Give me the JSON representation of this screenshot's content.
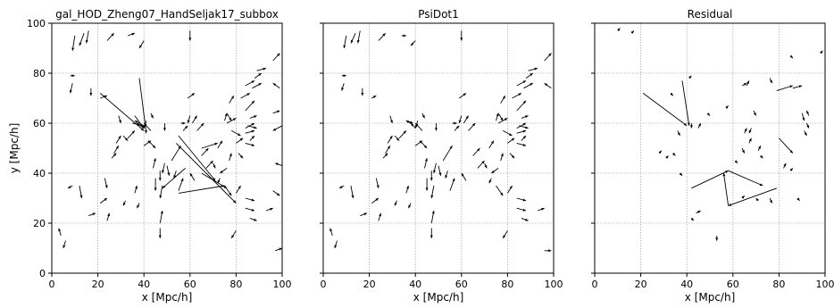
{
  "figure": {
    "ylabel": "y [Mpc/h]"
  },
  "chart_data": [
    {
      "type": "quiver",
      "title": "gal_HOD_Zheng07_HandSeljak17_subbox",
      "xlabel": "x [Mpc/h]",
      "ylabel": "y [Mpc/h]",
      "xlim": [
        0,
        100
      ],
      "ylim": [
        0,
        100
      ],
      "xticks": [
        0,
        20,
        40,
        60,
        80,
        100
      ],
      "yticks": [
        0,
        20,
        40,
        60,
        80,
        100
      ],
      "grid": true,
      "arrows": [
        [
          10,
          95,
          9,
          89
        ],
        [
          14,
          96,
          12,
          91
        ],
        [
          16,
          97,
          15,
          92
        ],
        [
          24,
          93,
          27,
          96
        ],
        [
          33,
          95,
          36,
          96
        ],
        [
          40,
          93,
          38,
          90
        ],
        [
          60,
          97,
          60,
          93
        ],
        [
          8,
          79,
          10,
          79
        ],
        [
          9,
          76,
          8,
          72
        ],
        [
          17,
          74,
          17,
          71
        ],
        [
          21,
          70,
          24,
          71
        ],
        [
          36,
          63,
          40,
          58
        ],
        [
          38,
          60,
          36,
          61
        ],
        [
          35,
          60,
          40,
          59
        ],
        [
          40,
          58,
          37,
          60
        ],
        [
          43,
          64,
          44,
          62
        ],
        [
          41,
          61,
          40,
          58
        ],
        [
          31,
          55,
          33,
          53
        ],
        [
          33,
          54,
          36,
          57
        ],
        [
          28,
          52,
          30,
          55
        ],
        [
          27,
          48,
          29,
          51
        ],
        [
          26,
          46,
          28,
          48
        ],
        [
          40,
          51,
          43,
          53
        ],
        [
          44,
          42,
          45,
          46
        ],
        [
          47,
          41,
          47,
          37
        ],
        [
          49,
          44,
          48,
          40
        ],
        [
          50,
          43,
          51,
          39
        ],
        [
          48,
          35,
          47,
          30
        ],
        [
          45,
          38,
          45,
          33
        ],
        [
          36,
          32,
          37,
          35
        ],
        [
          23,
          38,
          24,
          34
        ],
        [
          21,
          28,
          24,
          30
        ],
        [
          12,
          35,
          13,
          30
        ],
        [
          16,
          23,
          19,
          24
        ],
        [
          24,
          21,
          25,
          24
        ],
        [
          47,
          20,
          48,
          25
        ],
        [
          47,
          18,
          47,
          14
        ],
        [
          38,
          28,
          37,
          26
        ],
        [
          32,
          29,
          31,
          27
        ],
        [
          49,
          60,
          49,
          57
        ],
        [
          59,
          70,
          62,
          72
        ],
        [
          60,
          63,
          59,
          60
        ],
        [
          57,
          57,
          59,
          59
        ],
        [
          61,
          60,
          63,
          63
        ],
        [
          56,
          60,
          58,
          60
        ],
        [
          63,
          57,
          66,
          60
        ],
        [
          72,
          50,
          74,
          53
        ],
        [
          65,
          47,
          68,
          50
        ],
        [
          70,
          44,
          71,
          42
        ],
        [
          67,
          42,
          70,
          45
        ],
        [
          62,
          37,
          60,
          40
        ],
        [
          55,
          33,
          57,
          38
        ],
        [
          52,
          45,
          56,
          51
        ],
        [
          54,
          41,
          53,
          38
        ],
        [
          75,
          61,
          76,
          64
        ],
        [
          76,
          60,
          80,
          62
        ],
        [
          78,
          57,
          82,
          55
        ],
        [
          84,
          58,
          88,
          60
        ],
        [
          84,
          65,
          88,
          69
        ],
        [
          86,
          62,
          89,
          63
        ],
        [
          85,
          59,
          89,
          58
        ],
        [
          84,
          56,
          88,
          57
        ],
        [
          86,
          53,
          88,
          55
        ],
        [
          84,
          52,
          88,
          51
        ],
        [
          80,
          52,
          83,
          54
        ],
        [
          81,
          48,
          83,
          46
        ],
        [
          77,
          45,
          78,
          48
        ],
        [
          76,
          42,
          73,
          40
        ],
        [
          73,
          38,
          72,
          36
        ],
        [
          75,
          35,
          78,
          31
        ],
        [
          80,
          32,
          82,
          35
        ],
        [
          84,
          30,
          88,
          29
        ],
        [
          84,
          26,
          88,
          25
        ],
        [
          86,
          22,
          89,
          21
        ],
        [
          87,
          74,
          91,
          76
        ],
        [
          82,
          70,
          86,
          72
        ],
        [
          77,
          68,
          79,
          71
        ],
        [
          76,
          64,
          78,
          61
        ],
        [
          84,
          75,
          88,
          77
        ],
        [
          89,
          81,
          93,
          82
        ],
        [
          88,
          78,
          91,
          80
        ],
        [
          93,
          25,
          96,
          26
        ],
        [
          96,
          85,
          99,
          88
        ],
        [
          99,
          74,
          96,
          76
        ],
        [
          4,
          15,
          3,
          18
        ],
        [
          6,
          13,
          5,
          10
        ],
        [
          9,
          35,
          7,
          34
        ],
        [
          21,
          72,
          40,
          57
        ],
        [
          38,
          78,
          41,
          56
        ],
        [
          58,
          42,
          48,
          34
        ],
        [
          55,
          55,
          71,
          37
        ],
        [
          65,
          40,
          76,
          34
        ],
        [
          55,
          32,
          75,
          35
        ],
        [
          54,
          52,
          80,
          28
        ],
        [
          65,
          50,
          72,
          52
        ],
        [
          96,
          64,
          99,
          65
        ],
        [
          100,
          59,
          96,
          57
        ],
        [
          100,
          43,
          97,
          44
        ],
        [
          97,
          9,
          100,
          10
        ],
        [
          96,
          33,
          99,
          31
        ],
        [
          80,
          17,
          78,
          14
        ],
        [
          43,
          57,
          40,
          60
        ],
        [
          42,
          53,
          45,
          50
        ],
        [
          29,
          63,
          30,
          60
        ]
      ]
    },
    {
      "type": "quiver",
      "title": "PsiDot1",
      "xlabel": "x [Mpc/h]",
      "ylabel": "",
      "xlim": [
        0,
        100
      ],
      "ylim": [
        0,
        100
      ],
      "xticks": [
        0,
        20,
        40,
        60,
        80,
        100
      ],
      "yticks": [
        0,
        20,
        40,
        60,
        80,
        100
      ],
      "grid": true,
      "arrows": [
        [
          10,
          95,
          9,
          90
        ],
        [
          14,
          96,
          12,
          92
        ],
        [
          16,
          97,
          15,
          92
        ],
        [
          24,
          93,
          27,
          96
        ],
        [
          34,
          95,
          36,
          95
        ],
        [
          40,
          93,
          38,
          91
        ],
        [
          60,
          97,
          60,
          93
        ],
        [
          8,
          79,
          10,
          79
        ],
        [
          9,
          76,
          8,
          73
        ],
        [
          17,
          74,
          17,
          71
        ],
        [
          21,
          70,
          23,
          71
        ],
        [
          36,
          61,
          39,
          60
        ],
        [
          38,
          60,
          36,
          61
        ],
        [
          40,
          58,
          38,
          60
        ],
        [
          43,
          64,
          44,
          62
        ],
        [
          41,
          61,
          40,
          58
        ],
        [
          31,
          55,
          33,
          53
        ],
        [
          33,
          54,
          36,
          57
        ],
        [
          28,
          52,
          30,
          55
        ],
        [
          27,
          48,
          29,
          51
        ],
        [
          26,
          46,
          28,
          48
        ],
        [
          40,
          51,
          43,
          53
        ],
        [
          44,
          42,
          45,
          46
        ],
        [
          47,
          41,
          47,
          37
        ],
        [
          49,
          44,
          48,
          40
        ],
        [
          50,
          43,
          51,
          39
        ],
        [
          48,
          35,
          47,
          30
        ],
        [
          45,
          38,
          45,
          33
        ],
        [
          36,
          32,
          37,
          35
        ],
        [
          23,
          38,
          24,
          34
        ],
        [
          21,
          28,
          24,
          30
        ],
        [
          12,
          35,
          13,
          30
        ],
        [
          16,
          23,
          19,
          24
        ],
        [
          24,
          21,
          25,
          24
        ],
        [
          47,
          20,
          48,
          25
        ],
        [
          47,
          18,
          47,
          14
        ],
        [
          38,
          28,
          37,
          26
        ],
        [
          32,
          29,
          31,
          27
        ],
        [
          49,
          60,
          49,
          57
        ],
        [
          59,
          70,
          62,
          72
        ],
        [
          60,
          63,
          59,
          60
        ],
        [
          57,
          57,
          59,
          59
        ],
        [
          61,
          60,
          63,
          63
        ],
        [
          56,
          60,
          58,
          60
        ],
        [
          63,
          57,
          66,
          60
        ],
        [
          72,
          50,
          74,
          53
        ],
        [
          65,
          47,
          68,
          50
        ],
        [
          70,
          44,
          71,
          42
        ],
        [
          67,
          42,
          70,
          45
        ],
        [
          62,
          37,
          60,
          40
        ],
        [
          55,
          33,
          57,
          38
        ],
        [
          52,
          45,
          56,
          51
        ],
        [
          54,
          41,
          53,
          38
        ],
        [
          75,
          61,
          76,
          64
        ],
        [
          76,
          60,
          80,
          62
        ],
        [
          78,
          57,
          82,
          55
        ],
        [
          84,
          58,
          88,
          60
        ],
        [
          84,
          65,
          88,
          69
        ],
        [
          86,
          62,
          89,
          63
        ],
        [
          85,
          59,
          89,
          58
        ],
        [
          84,
          56,
          88,
          57
        ],
        [
          86,
          53,
          88,
          55
        ],
        [
          84,
          52,
          88,
          51
        ],
        [
          80,
          52,
          83,
          54
        ],
        [
          81,
          48,
          83,
          46
        ],
        [
          77,
          45,
          78,
          48
        ],
        [
          76,
          42,
          73,
          40
        ],
        [
          73,
          38,
          72,
          36
        ],
        [
          75,
          35,
          78,
          31
        ],
        [
          80,
          32,
          82,
          35
        ],
        [
          84,
          30,
          88,
          29
        ],
        [
          84,
          26,
          88,
          25
        ],
        [
          86,
          22,
          89,
          21
        ],
        [
          87,
          74,
          91,
          76
        ],
        [
          82,
          70,
          86,
          72
        ],
        [
          77,
          68,
          79,
          71
        ],
        [
          76,
          64,
          78,
          61
        ],
        [
          84,
          75,
          88,
          77
        ],
        [
          89,
          81,
          93,
          82
        ],
        [
          88,
          78,
          91,
          80
        ],
        [
          93,
          25,
          96,
          26
        ],
        [
          96,
          85,
          99,
          88
        ],
        [
          99,
          74,
          96,
          76
        ],
        [
          4,
          15,
          3,
          18
        ],
        [
          6,
          13,
          5,
          10
        ],
        [
          9,
          35,
          7,
          34
        ],
        [
          80,
          17,
          78,
          14
        ],
        [
          43,
          57,
          40,
          60
        ],
        [
          42,
          53,
          45,
          50
        ],
        [
          29,
          63,
          30,
          60
        ],
        [
          96,
          9,
          99,
          9
        ]
      ]
    },
    {
      "type": "quiver",
      "title": "Residual",
      "xlabel": "x [Mpc/h]",
      "ylabel": "",
      "xlim": [
        0,
        100
      ],
      "ylim": [
        0,
        100
      ],
      "xticks": [
        0,
        20,
        40,
        60,
        80,
        100
      ],
      "yticks": [
        0,
        20,
        40,
        60,
        80,
        100
      ],
      "grid": true,
      "arrows": [
        [
          21,
          72,
          40,
          59
        ],
        [
          38,
          77,
          41,
          59
        ],
        [
          42,
          34,
          58,
          41
        ],
        [
          58,
          41,
          73,
          35
        ],
        [
          58,
          27,
          56,
          40
        ],
        [
          79,
          34,
          58,
          27
        ],
        [
          80,
          54,
          86,
          48
        ],
        [
          79,
          73,
          86,
          75
        ],
        [
          86,
          74,
          90,
          75
        ],
        [
          33,
          72,
          34,
          71
        ],
        [
          41,
          78,
          42,
          79
        ],
        [
          42,
          60,
          42,
          58
        ],
        [
          36,
          57,
          37,
          55
        ],
        [
          34,
          48,
          35,
          47
        ],
        [
          57,
          66,
          58,
          67
        ],
        [
          64,
          75,
          66,
          76
        ],
        [
          66,
          75,
          67,
          77
        ],
        [
          76,
          78,
          77,
          76
        ],
        [
          69,
          65,
          70,
          63
        ],
        [
          68,
          58,
          67,
          56
        ],
        [
          65,
          56,
          66,
          58
        ],
        [
          67,
          52,
          68,
          54
        ],
        [
          64,
          50,
          65,
          48
        ],
        [
          71,
          49,
          72,
          51
        ],
        [
          72,
          47,
          73,
          46
        ],
        [
          82,
          42,
          83,
          44
        ],
        [
          85,
          41,
          86,
          42
        ],
        [
          90,
          64,
          91,
          61
        ],
        [
          92,
          60,
          93,
          58
        ],
        [
          91,
          57,
          92,
          55
        ],
        [
          93,
          63,
          92,
          65
        ],
        [
          49,
          64,
          50,
          63
        ],
        [
          45,
          58,
          46,
          60
        ],
        [
          31,
          46,
          32,
          47
        ],
        [
          28,
          48,
          29,
          49
        ],
        [
          37,
          40,
          38,
          39
        ],
        [
          44,
          24,
          46,
          25
        ],
        [
          42,
          22,
          43,
          21
        ],
        [
          53,
          15,
          53,
          13
        ],
        [
          71,
          29,
          70,
          30
        ],
        [
          76,
          30,
          77,
          28
        ],
        [
          88,
          30,
          89,
          29
        ],
        [
          98,
          88,
          99,
          89
        ],
        [
          10,
          97,
          11,
          98
        ],
        [
          16,
          96,
          17,
          97
        ],
        [
          85,
          87,
          86,
          86
        ],
        [
          61,
          45,
          62,
          44
        ],
        [
          64,
          30,
          65,
          31
        ]
      ]
    }
  ]
}
